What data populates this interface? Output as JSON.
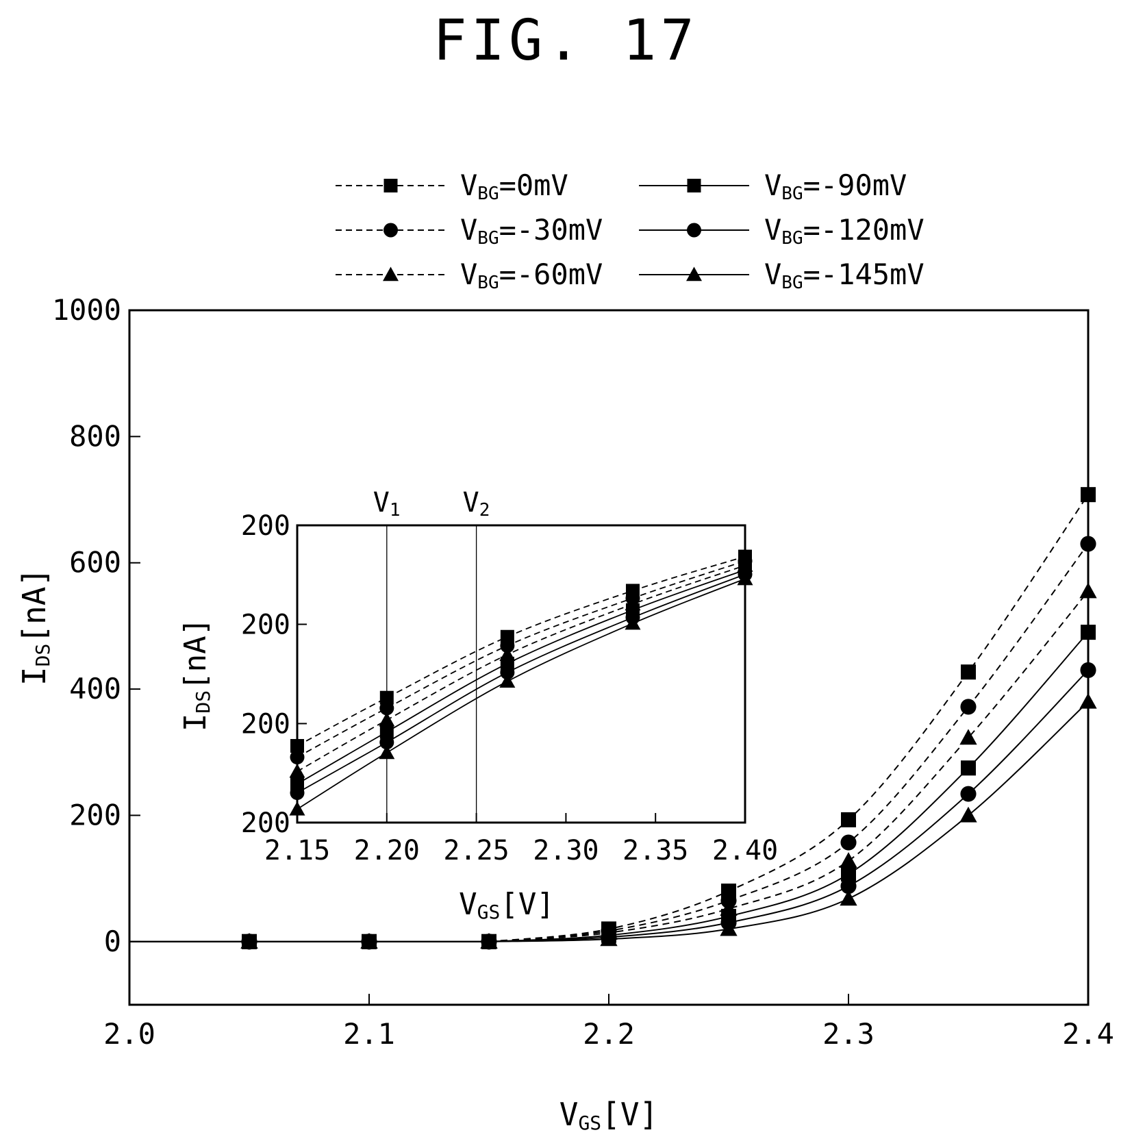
{
  "figure": {
    "title": "FIG. 17"
  },
  "legend": [
    {
      "label_main": "V",
      "label_sub": "BG",
      "label_rest": "=0mV",
      "marker": "square",
      "dash": true
    },
    {
      "label_main": "V",
      "label_sub": "BG",
      "label_rest": "=-30mV",
      "marker": "circle",
      "dash": true
    },
    {
      "label_main": "V",
      "label_sub": "BG",
      "label_rest": "=-60mV",
      "marker": "triangle",
      "dash": true
    },
    {
      "label_main": "V",
      "label_sub": "BG",
      "label_rest": "=-90mV",
      "marker": "square",
      "dash": false
    },
    {
      "label_main": "V",
      "label_sub": "BG",
      "label_rest": "=-120mV",
      "marker": "circle",
      "dash": false
    },
    {
      "label_main": "V",
      "label_sub": "BG",
      "label_rest": "=-145mV",
      "marker": "triangle",
      "dash": false
    }
  ],
  "chart_data": [
    {
      "type": "line",
      "xlabel": {
        "main": "V",
        "sub": "GS",
        "rest": "[V]"
      },
      "ylabel": {
        "main": "I",
        "sub": "DS",
        "rest": "[nA]"
      },
      "xlim": [
        2.0,
        2.4
      ],
      "ylim": [
        -100,
        1000
      ],
      "xticks": [
        "2.0",
        "2.1",
        "2.2",
        "2.3",
        "2.4"
      ],
      "xtick_values": [
        2.0,
        2.1,
        2.2,
        2.3,
        2.4
      ],
      "yticks": [
        "0",
        "200",
        "400",
        "600",
        "800",
        "1000"
      ],
      "ytick_values": [
        0,
        200,
        400,
        600,
        800,
        1000
      ],
      "grid": false,
      "legend_position": "top",
      "x": [
        2.05,
        2.1,
        2.15,
        2.2,
        2.25,
        2.3,
        2.35,
        2.4
      ],
      "series": [
        {
          "name": "VBG=0mV",
          "values": [
            0,
            0,
            0,
            20,
            80,
            193,
            427,
            708
          ]
        },
        {
          "name": "VBG=-30mV",
          "values": [
            0,
            0,
            0,
            17,
            65,
            157,
            372,
            630
          ]
        },
        {
          "name": "VBG=-60mV",
          "values": [
            0,
            0,
            0,
            14,
            52,
            128,
            323,
            555
          ]
        },
        {
          "name": "VBG=-90mV",
          "values": [
            0,
            0,
            0,
            10,
            40,
            107,
            275,
            490
          ]
        },
        {
          "name": "VBG=-120mV",
          "values": [
            0,
            0,
            0,
            7,
            30,
            88,
            234,
            430
          ]
        },
        {
          "name": "VBG=-145mV",
          "values": [
            0,
            0,
            0,
            4,
            20,
            68,
            200,
            380
          ]
        }
      ]
    },
    {
      "type": "line",
      "inset": true,
      "xlabel": {
        "main": "V",
        "sub": "GS",
        "rest": "[V]"
      },
      "ylabel": {
        "main": "I",
        "sub": "DS",
        "rest": "[nA]"
      },
      "xlim": [
        2.15,
        2.4
      ],
      "ylim": [
        0,
        1
      ],
      "xticks": [
        "2.15",
        "2.20",
        "2.25",
        "2.30",
        "2.35",
        "2.40"
      ],
      "xtick_values": [
        2.15,
        2.2,
        2.25,
        2.3,
        2.35,
        2.4
      ],
      "yticks": [
        "200",
        "200",
        "200",
        "200"
      ],
      "ytick_fractions": [
        0,
        0.333,
        0.667,
        1.0
      ],
      "grid": false,
      "vlines": [
        {
          "label_main": "V",
          "label_sub": "1",
          "x": 2.2
        },
        {
          "label_main": "V",
          "label_sub": "2",
          "x": 2.25
        }
      ],
      "x": [
        2.15,
        2.2,
        2.2673,
        2.3373,
        2.4
      ],
      "series": [
        {
          "name": "VBG=0mV",
          "values": [
            0.258,
            0.42,
            0.625,
            0.78,
            0.895
          ]
        },
        {
          "name": "VBG=-30mV",
          "values": [
            0.22,
            0.385,
            0.595,
            0.755,
            0.88
          ]
        },
        {
          "name": "VBG=-60mV",
          "values": [
            0.172,
            0.345,
            0.565,
            0.735,
            0.865
          ]
        },
        {
          "name": "VBG=-90mV",
          "values": [
            0.13,
            0.305,
            0.535,
            0.715,
            0.85
          ]
        },
        {
          "name": "VBG=-120mV",
          "values": [
            0.1,
            0.27,
            0.505,
            0.69,
            0.835
          ]
        },
        {
          "name": "VBG=-145mV",
          "values": [
            0.045,
            0.235,
            0.475,
            0.67,
            0.82
          ]
        }
      ]
    }
  ]
}
